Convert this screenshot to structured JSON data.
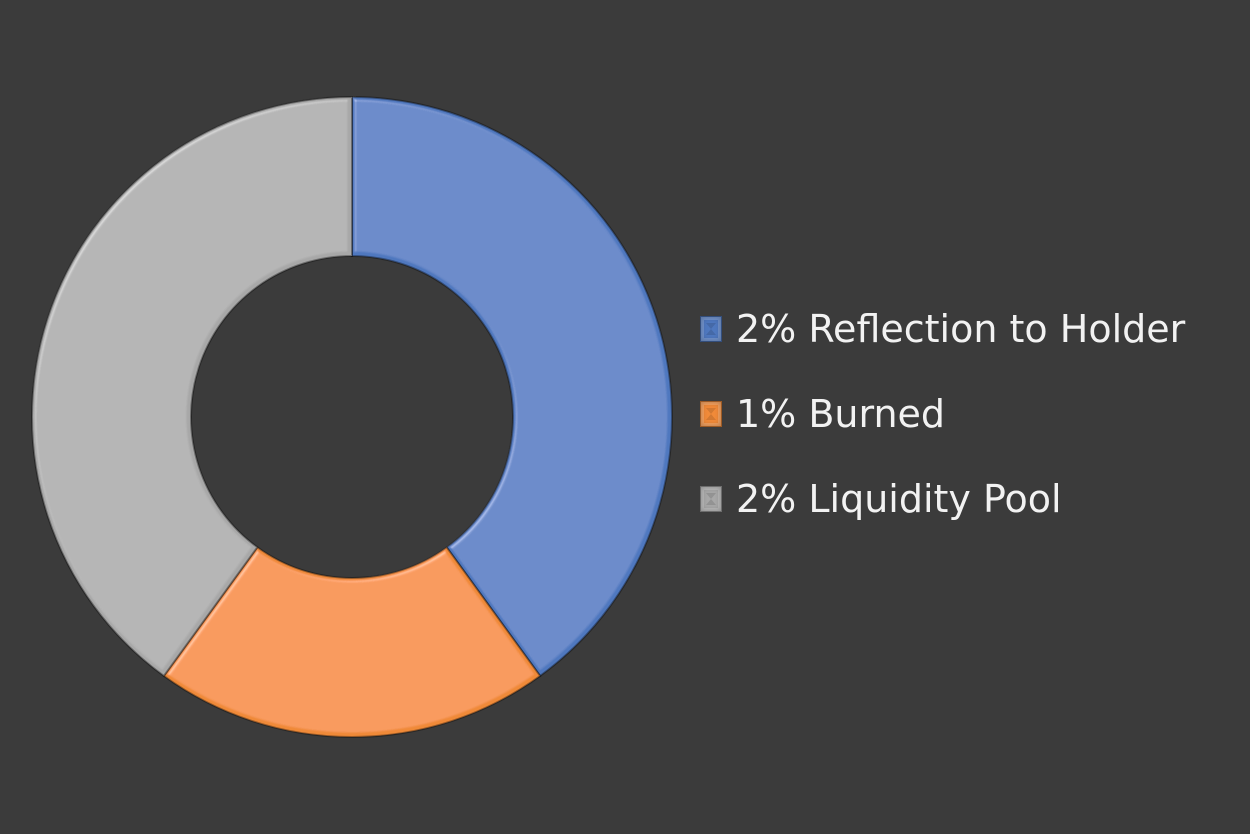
{
  "chart_data": {
    "type": "pie",
    "variant": "donut",
    "title": "",
    "categories": [
      "2% Reflection to Holder",
      "1% Burned",
      "2% Liquidity Pool"
    ],
    "values": [
      2,
      1,
      2
    ],
    "colors": [
      "#4f78bf",
      "#f08a39",
      "#a8a8a8"
    ],
    "legend_position": "right",
    "legend": [
      {
        "label": "2% Reflection to Holder",
        "color": "#4f78bf"
      },
      {
        "label": "1% Burned",
        "color": "#f08a39"
      },
      {
        "label": "2% Liquidity Pool",
        "color": "#a8a8a8"
      }
    ]
  }
}
